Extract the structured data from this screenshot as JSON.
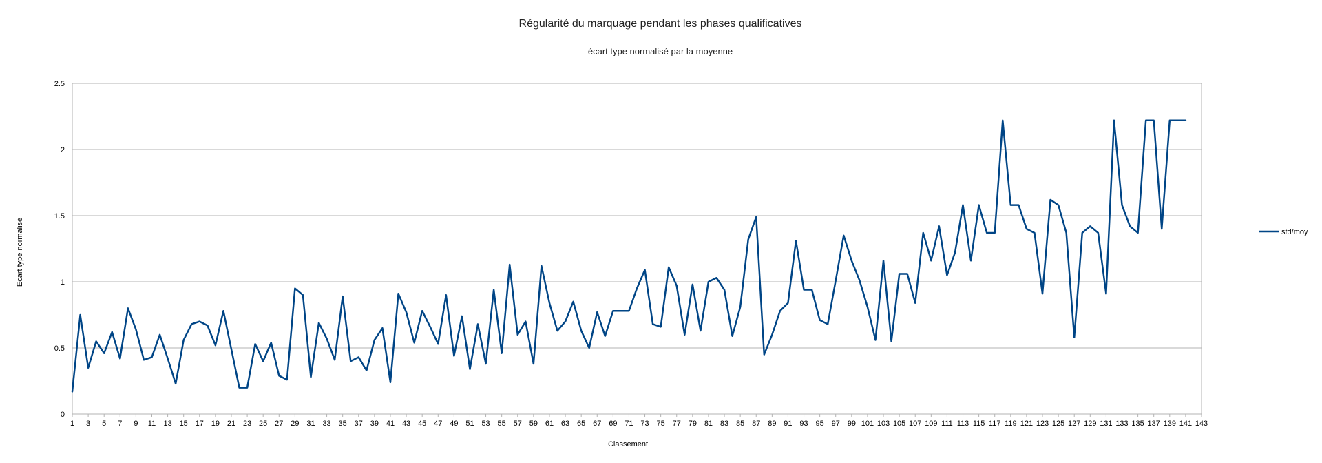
{
  "chart_data": {
    "type": "line",
    "title": "Régularité du marquage pendant les phases qualificatives",
    "subtitle": "écart type normalisé par la moyenne",
    "xlabel": "Classement",
    "ylabel": "Ecart type normalisé",
    "ylim": [
      0,
      2.5
    ],
    "yticks": [
      "0",
      "0.5",
      "1",
      "1.5",
      "2",
      "2.5"
    ],
    "xlim": [
      1,
      143
    ],
    "xtick_step": 2,
    "grid": true,
    "legend": "right",
    "line_color": "#004586",
    "series": [
      {
        "name": "std/moy",
        "values": [
          0.17,
          0.75,
          0.35,
          0.55,
          0.46,
          0.62,
          0.42,
          0.8,
          0.64,
          0.41,
          0.43,
          0.6,
          0.42,
          0.23,
          0.56,
          0.68,
          0.7,
          0.67,
          0.52,
          0.78,
          0.49,
          0.2,
          0.2,
          0.53,
          0.4,
          0.54,
          0.29,
          0.26,
          0.95,
          0.9,
          0.28,
          0.69,
          0.57,
          0.41,
          0.89,
          0.4,
          0.43,
          0.33,
          0.56,
          0.65,
          0.24,
          0.91,
          0.77,
          0.54,
          0.78,
          0.66,
          0.53,
          0.9,
          0.44,
          0.74,
          0.34,
          0.68,
          0.38,
          0.94,
          0.46,
          1.13,
          0.6,
          0.7,
          0.38,
          1.12,
          0.84,
          0.63,
          0.7,
          0.85,
          0.63,
          0.5,
          0.77,
          0.59,
          0.78,
          0.78,
          0.78,
          0.95,
          1.09,
          0.68,
          0.66,
          1.11,
          0.97,
          0.6,
          0.98,
          0.63,
          1.0,
          1.03,
          0.94,
          0.59,
          0.81,
          1.32,
          1.49,
          0.45,
          0.6,
          0.78,
          0.84,
          1.31,
          0.94,
          0.94,
          0.71,
          0.68,
          1.01,
          1.35,
          1.16,
          1.01,
          0.81,
          0.56,
          1.16,
          0.55,
          1.06,
          1.06,
          0.84,
          1.37,
          1.16,
          1.42,
          1.05,
          1.22,
          1.58,
          1.16,
          1.58,
          1.37,
          1.37,
          2.22,
          1.58,
          1.58,
          1.4,
          1.37,
          0.91,
          1.62,
          1.58,
          1.37,
          0.58,
          1.37,
          1.42,
          1.37,
          0.91,
          2.22,
          1.58,
          1.42,
          1.37,
          2.22,
          2.22,
          1.4,
          2.22,
          2.22,
          2.22
        ]
      }
    ]
  }
}
